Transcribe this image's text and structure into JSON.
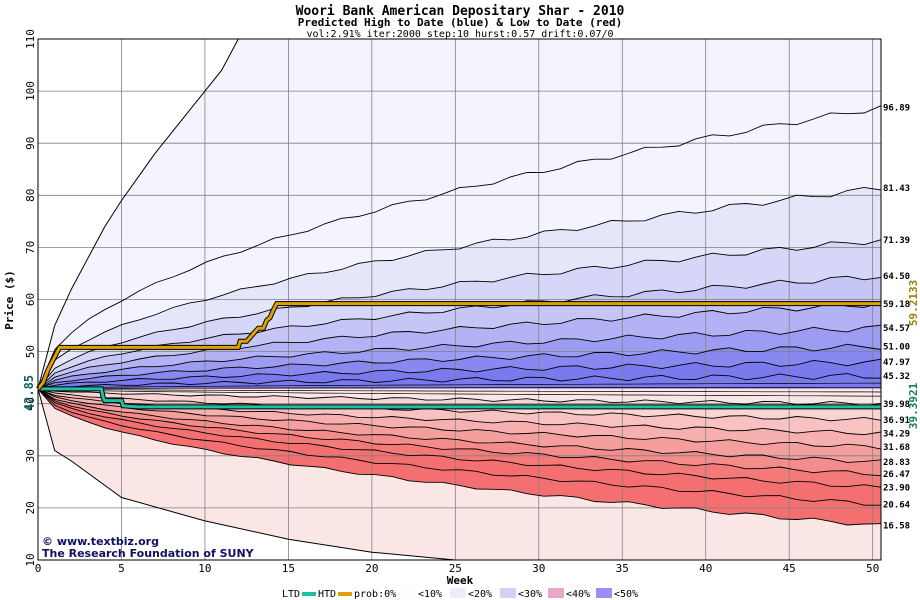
{
  "chart_data": {
    "type": "area",
    "title": "Woori Bank American Depositary Shar - 2010",
    "subtitle": "Predicted High to Date (blue) &  Low to Date (red)",
    "params": "vol:2.91% iter:2000 step:10 hurst:0.57 drift:0.07/0",
    "xlabel": "Week",
    "ylabel": "Price ($)",
    "xlim": [
      0,
      50.5
    ],
    "ylim": [
      10,
      110
    ],
    "xticks": [
      0,
      5,
      10,
      15,
      20,
      25,
      30,
      35,
      40,
      45,
      50
    ],
    "yticks": [
      10,
      20,
      30,
      40,
      50,
      60,
      70,
      80,
      90,
      100,
      110
    ],
    "grid": true,
    "start_price": 42.85,
    "start_label": "42.85",
    "high_to_date_final": 59.2133,
    "high_to_date_label": "59.2133",
    "low_to_date_final": 39.3921,
    "low_to_date_label": "39.3921",
    "end_value_labels": [
      "96.89",
      "81.43",
      "71.39",
      "64.50",
      "59.18",
      "54.57",
      "51.00",
      "47.97",
      "45.32",
      "39.98",
      "36.91",
      "34.29",
      "31.68",
      "28.83",
      "26.47",
      "23.90",
      "20.64",
      "16.58"
    ],
    "upper_envelope": {
      "x": [
        0,
        1,
        2,
        3,
        4,
        5,
        7,
        9,
        11,
        12
      ],
      "y": [
        42.85,
        55,
        62,
        68,
        74,
        79,
        88,
        96,
        104,
        110
      ]
    },
    "lower_envelope": {
      "x": [
        0,
        1,
        2,
        5,
        10,
        15,
        20,
        25
      ],
      "y": [
        42.85,
        31,
        29,
        22,
        17.5,
        14,
        11.5,
        10
      ]
    },
    "band_colors": {
      "blue": [
        "#f4f4fe",
        "#e6e6fb",
        "#d6d6f8",
        "#c6c6f6",
        "#b2b2f4",
        "#9c9cf2",
        "#8888f0",
        "#7a7aee"
      ],
      "red": [
        "#fbe6e6",
        "#fad4d4",
        "#f8c2c2",
        "#f6b0b0",
        "#f49e9e",
        "#f48c8c",
        "#f47a7a",
        "#f47070"
      ]
    },
    "high_to_date": {
      "x": [
        0,
        0.3,
        0.6,
        1,
        1.3,
        12,
        12.1,
        12.5,
        13,
        13.2,
        13.5,
        13.7,
        13.9,
        14.1,
        14.3,
        50.5
      ],
      "y": [
        42.85,
        44,
        46.5,
        49,
        50.8,
        50.8,
        52,
        52,
        53.8,
        54.5,
        54.5,
        56,
        56.5,
        58,
        59.21,
        59.21
      ]
    },
    "low_to_date": {
      "x": [
        0,
        3.8,
        3.9,
        4,
        5,
        5.1,
        6,
        50.5
      ],
      "y": [
        42.85,
        42.85,
        41.2,
        40.6,
        40.6,
        39.6,
        39.39,
        39.39
      ]
    },
    "legend": {
      "ltd": "LTD",
      "htd": "HTD",
      "prob": "prob:0%",
      "items": [
        "<10%",
        "<20%",
        "<30%",
        "<40%",
        "<50%"
      ],
      "ltd_color": "#20c0a0",
      "htd_color": "#e0a000"
    },
    "credit": {
      "line1": "www.textbiz.org",
      "line2": "The Research Foundation of SUNY"
    }
  }
}
